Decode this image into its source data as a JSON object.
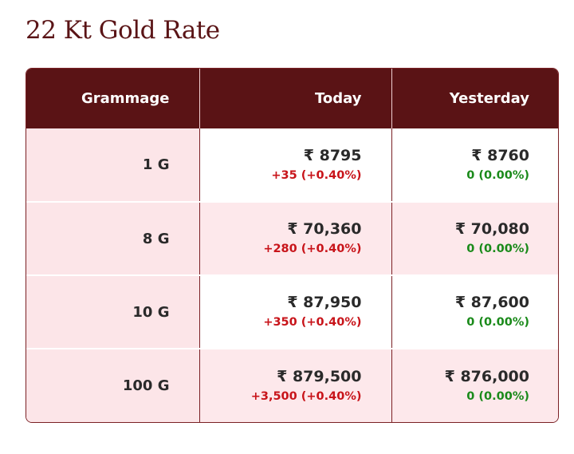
{
  "title": "22 Kt Gold Rate",
  "table": {
    "headers": [
      "Grammage",
      "Today",
      "Yesterday"
    ],
    "rows": [
      {
        "grammage": "1 G",
        "today_price": "₹ 8795",
        "today_change": "+35 (+0.40%)",
        "yesterday_price": "₹ 8760",
        "yesterday_change": "0 (0.00%)"
      },
      {
        "grammage": "8 G",
        "today_price": "₹ 70,360",
        "today_change": "+280 (+0.40%)",
        "yesterday_price": "₹ 70,080",
        "yesterday_change": "0 (0.00%)"
      },
      {
        "grammage": "10 G",
        "today_price": "₹ 87,950",
        "today_change": "+350 (+0.40%)",
        "yesterday_price": "₹ 87,600",
        "yesterday_change": "0 (0.00%)"
      },
      {
        "grammage": "100 G",
        "today_price": "₹ 879,500",
        "today_change": "+3,500 (+0.40%)",
        "yesterday_price": "₹ 876,000",
        "yesterday_change": "0 (0.00%)"
      }
    ]
  },
  "colors": {
    "header_bg": "#5a1315",
    "title": "#5a1416",
    "increase": "#c8141a",
    "no_change": "#1a8a1a",
    "grammage_bg": "#fce5e8"
  }
}
